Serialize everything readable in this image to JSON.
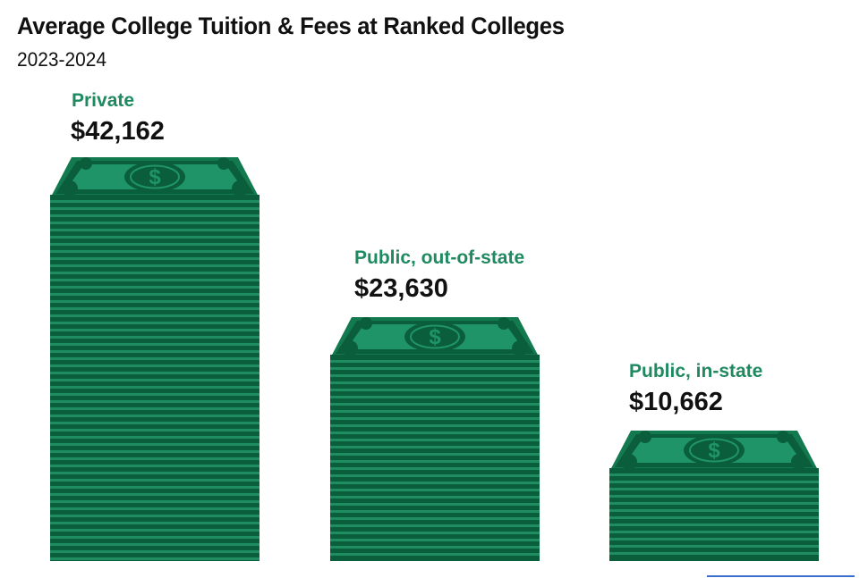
{
  "header": {
    "title": "Average College Tuition & Fees at Ranked Colleges",
    "subtitle": "2023-2024"
  },
  "colors": {
    "label_green": "#1f8a5f",
    "bill_dark": "#0b5e3c",
    "bill_mid": "#137a50",
    "bill_light": "#1f9468",
    "bill_panel": "#23a072",
    "stripe_light": "#1f8c62",
    "stripe_dark": "#0b5e3c",
    "footer_line": "#3a6fd0"
  },
  "icons": {
    "bill": "dollar-bill-stack-icon",
    "coin": "dollar-sign-icon"
  },
  "bars": [
    {
      "label": "Private",
      "value_text": "$42,162"
    },
    {
      "label": "Public, out-of-state",
      "value_text": "$23,630"
    },
    {
      "label": "Public, in-state",
      "value_text": "$10,662"
    }
  ],
  "chart_data": {
    "type": "bar",
    "title": "Average College Tuition & Fees at Ranked Colleges",
    "subtitle": "2023-2024",
    "categories": [
      "Private",
      "Public, out-of-state",
      "Public, in-state"
    ],
    "values": [
      42162,
      23630,
      10662
    ],
    "value_labels": [
      "$42,162",
      "$23,630",
      "$10,662"
    ],
    "xlabel": "",
    "ylabel": "",
    "units": "USD",
    "grid": false,
    "legend": null,
    "style": "pictorial stacks of dollar bills"
  }
}
